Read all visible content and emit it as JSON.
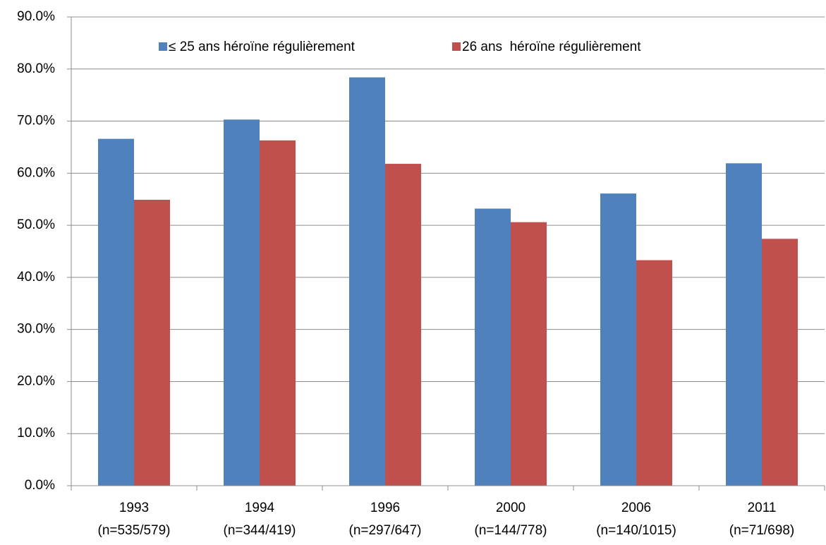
{
  "chart_data": {
    "type": "bar",
    "categories": [
      [
        "1993",
        "(n=535/579)"
      ],
      [
        "1994",
        "(n=344/419)"
      ],
      [
        "1996",
        "(n=297/647)"
      ],
      [
        "2000",
        "(n=144/778)"
      ],
      [
        "2006",
        "(n=140/1015)"
      ],
      [
        "2011",
        "(n=71/698)"
      ]
    ],
    "series": [
      {
        "name": "≤ 25 ans héroïne régulièrement",
        "color": "#4f81bd",
        "values": [
          66.6,
          70.3,
          78.4,
          53.2,
          56.1,
          61.9
        ]
      },
      {
        "name": "26 ans  héroïne régulièrement",
        "color": "#c0504d",
        "values": [
          54.9,
          66.3,
          61.8,
          50.6,
          43.3,
          47.4
        ]
      }
    ],
    "ylim": [
      0,
      90
    ],
    "yticks": [
      {
        "value": 0,
        "label": "0.0%"
      },
      {
        "value": 10,
        "label": "10.0%"
      },
      {
        "value": 20,
        "label": "20.0%"
      },
      {
        "value": 30,
        "label": "30.0%"
      },
      {
        "value": 40,
        "label": "40.0%"
      },
      {
        "value": 50,
        "label": "50.0%"
      },
      {
        "value": 60,
        "label": "60.0%"
      },
      {
        "value": 70,
        "label": "70.0%"
      },
      {
        "value": 80,
        "label": "80.0%"
      },
      {
        "value": 90,
        "label": "90.0%"
      }
    ],
    "grid": true,
    "legend": "top"
  }
}
